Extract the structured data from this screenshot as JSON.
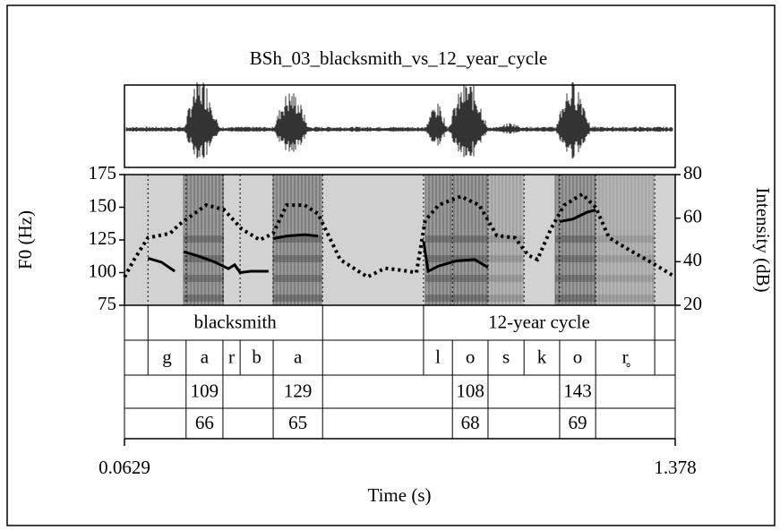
{
  "chart_data": {
    "type": "line",
    "title": "BSh_03_blacksmith_vs_12_year_cycle",
    "x_label": "Time (s)",
    "y_label": "F0 (Hz)",
    "y2_label": "Intensity (dB)",
    "xlim": [
      0.0629,
      1.378
    ],
    "xticks": [
      0.0629,
      1.378
    ],
    "ylim": [
      75,
      175
    ],
    "yticks": [
      75,
      100,
      125,
      150,
      175
    ],
    "y2lim": [
      20,
      80
    ],
    "y2ticks": [
      20,
      40,
      60,
      80
    ],
    "series": [
      {
        "color": "#000000",
        "style": "solid",
        "axis": "y",
        "x": [
          0.119,
          0.151,
          0.183,
          0.193,
          0.204,
          0.236,
          0.279,
          0.311,
          0.326,
          0.339,
          0.364,
          0.407,
          0.412,
          0.418,
          0.45,
          0.493,
          0.525,
          0.65,
          0.777,
          0.788,
          0.813,
          0.856,
          0.899,
          0.931,
          1.02,
          1.102,
          1.134,
          1.166,
          1.188
        ],
        "values": [
          111,
          108,
          101,
          null,
          116,
          113,
          108,
          103,
          106,
          100,
          101,
          101,
          null,
          126,
          128,
          129,
          128,
          null,
          124,
          101,
          105,
          109,
          110,
          104,
          null,
          139,
          141,
          146,
          148
        ]
      },
      {
        "color": "#000000",
        "style": "dotted",
        "axis": "y2",
        "x": [
          0.063,
          0.086,
          0.119,
          0.172,
          0.193,
          0.258,
          0.3,
          0.343,
          0.386,
          0.418,
          0.45,
          0.493,
          0.525,
          0.578,
          0.643,
          0.685,
          0.728,
          0.76,
          0.781,
          0.813,
          0.866,
          0.91,
          0.952,
          0.995,
          1.027,
          1.049,
          1.081,
          1.113,
          1.156,
          1.188,
          1.22,
          1.263,
          1.327,
          1.378
        ],
        "values": [
          33,
          41,
          51,
          53,
          57,
          66,
          64,
          55,
          50,
          53,
          66,
          66,
          62,
          41,
          33,
          37,
          36,
          35,
          59,
          66,
          70,
          66,
          52,
          51,
          43,
          41,
          55,
          66,
          71,
          65,
          51,
          46,
          39,
          33
        ]
      }
    ],
    "tiers": [
      {
        "boundaries": [
          0.119,
          0.536,
          0.777,
          1.329
        ],
        "labels": [
          {
            "xmin": 0.119,
            "xmax": 0.536,
            "text": "blacksmith"
          },
          {
            "xmin": 0.777,
            "xmax": 1.329,
            "text": "12-year cycle"
          }
        ]
      },
      {
        "boundaries": [
          0.119,
          0.21,
          0.298,
          0.339,
          0.418,
          0.536,
          0.777,
          0.846,
          0.931,
          1.017,
          1.102,
          1.188,
          1.329
        ],
        "labels": [
          {
            "xmin": 0.119,
            "xmax": 0.21,
            "text": "g"
          },
          {
            "xmin": 0.21,
            "xmax": 0.298,
            "text": "a"
          },
          {
            "xmin": 0.298,
            "xmax": 0.339,
            "text": "r"
          },
          {
            "xmin": 0.339,
            "xmax": 0.418,
            "text": "b"
          },
          {
            "xmin": 0.418,
            "xmax": 0.536,
            "text": "a"
          },
          {
            "xmin": 0.777,
            "xmax": 0.846,
            "text": "l"
          },
          {
            "xmin": 0.846,
            "xmax": 0.931,
            "text": "o"
          },
          {
            "xmin": 0.931,
            "xmax": 1.017,
            "text": "s"
          },
          {
            "xmin": 1.017,
            "xmax": 1.102,
            "text": "k"
          },
          {
            "xmin": 1.102,
            "xmax": 1.188,
            "text": "o"
          },
          {
            "xmin": 1.188,
            "xmax": 1.329,
            "text": "r̥"
          }
        ]
      },
      {
        "boundaries": [
          0.21,
          0.298,
          0.418,
          0.536,
          0.846,
          0.931,
          1.102,
          1.188
        ],
        "labels": [
          {
            "xmin": 0.21,
            "xmax": 0.298,
            "text": 109
          },
          {
            "xmin": 0.418,
            "xmax": 0.536,
            "text": 129
          },
          {
            "xmin": 0.846,
            "xmax": 0.931,
            "text": 108
          },
          {
            "xmin": 1.102,
            "xmax": 1.188,
            "text": 143
          }
        ]
      },
      {
        "boundaries": [
          0.21,
          0.298,
          0.418,
          0.536,
          0.846,
          0.931,
          1.102,
          1.188
        ],
        "labels": [
          {
            "xmin": 0.21,
            "xmax": 0.298,
            "text": 66
          },
          {
            "xmin": 0.418,
            "xmax": 0.536,
            "text": 65
          },
          {
            "xmin": 0.846,
            "xmax": 0.931,
            "text": 68
          },
          {
            "xmin": 1.102,
            "xmax": 1.188,
            "text": 69
          }
        ]
      }
    ]
  }
}
